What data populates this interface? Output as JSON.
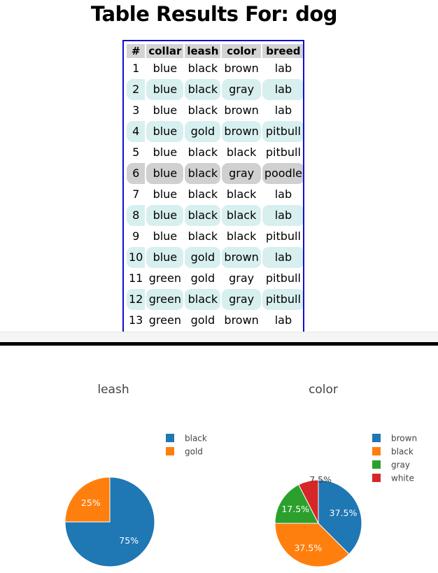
{
  "title": "Table Results For: dog",
  "table": {
    "columns": [
      "#",
      "collar",
      "leash",
      "color",
      "breed"
    ],
    "rows": [
      {
        "values": [
          "1",
          "blue",
          "black",
          "brown",
          "lab"
        ],
        "state": "plain"
      },
      {
        "values": [
          "2",
          "blue",
          "black",
          "gray",
          "lab"
        ],
        "state": "shade"
      },
      {
        "values": [
          "3",
          "blue",
          "black",
          "brown",
          "lab"
        ],
        "state": "plain"
      },
      {
        "values": [
          "4",
          "blue",
          "gold",
          "brown",
          "pitbull"
        ],
        "state": "shade"
      },
      {
        "values": [
          "5",
          "blue",
          "black",
          "black",
          "pitbull"
        ],
        "state": "plain"
      },
      {
        "values": [
          "6",
          "blue",
          "black",
          "gray",
          "poodle"
        ],
        "state": "selected"
      },
      {
        "values": [
          "7",
          "blue",
          "black",
          "black",
          "lab"
        ],
        "state": "plain"
      },
      {
        "values": [
          "8",
          "blue",
          "black",
          "black",
          "lab"
        ],
        "state": "shade"
      },
      {
        "values": [
          "9",
          "blue",
          "black",
          "black",
          "pitbull"
        ],
        "state": "plain"
      },
      {
        "values": [
          "10",
          "blue",
          "gold",
          "brown",
          "lab"
        ],
        "state": "shade"
      },
      {
        "values": [
          "11",
          "green",
          "gold",
          "gray",
          "pitbull"
        ],
        "state": "plain"
      },
      {
        "values": [
          "12",
          "green",
          "black",
          "gray",
          "pitbull"
        ],
        "state": "shade"
      },
      {
        "values": [
          "13",
          "green",
          "gold",
          "brown",
          "lab"
        ],
        "state": "plain"
      }
    ]
  },
  "colors": {
    "table_border": "#1010c8",
    "header_bg": "#d3d3d3",
    "row_shade": "#d8efef",
    "row_selected": "#d0d0d0"
  },
  "chart_data": [
    {
      "type": "pie",
      "title": "leash",
      "labels": [
        "black",
        "gold"
      ],
      "values": [
        75,
        25
      ],
      "value_labels": [
        "75%",
        "25%"
      ],
      "colors": [
        "#1f77b4",
        "#ff7f0e"
      ],
      "legend": "top-right"
    },
    {
      "type": "pie",
      "title": "color",
      "labels": [
        "brown",
        "black",
        "gray",
        "white"
      ],
      "values": [
        37.5,
        37.5,
        17.5,
        7.5
      ],
      "value_labels": [
        "37.5%",
        "37.5%",
        "17.5%",
        "7.5%"
      ],
      "colors": [
        "#1f77b4",
        "#ff7f0e",
        "#2ca02c",
        "#d62728"
      ],
      "legend": "top-right"
    }
  ]
}
